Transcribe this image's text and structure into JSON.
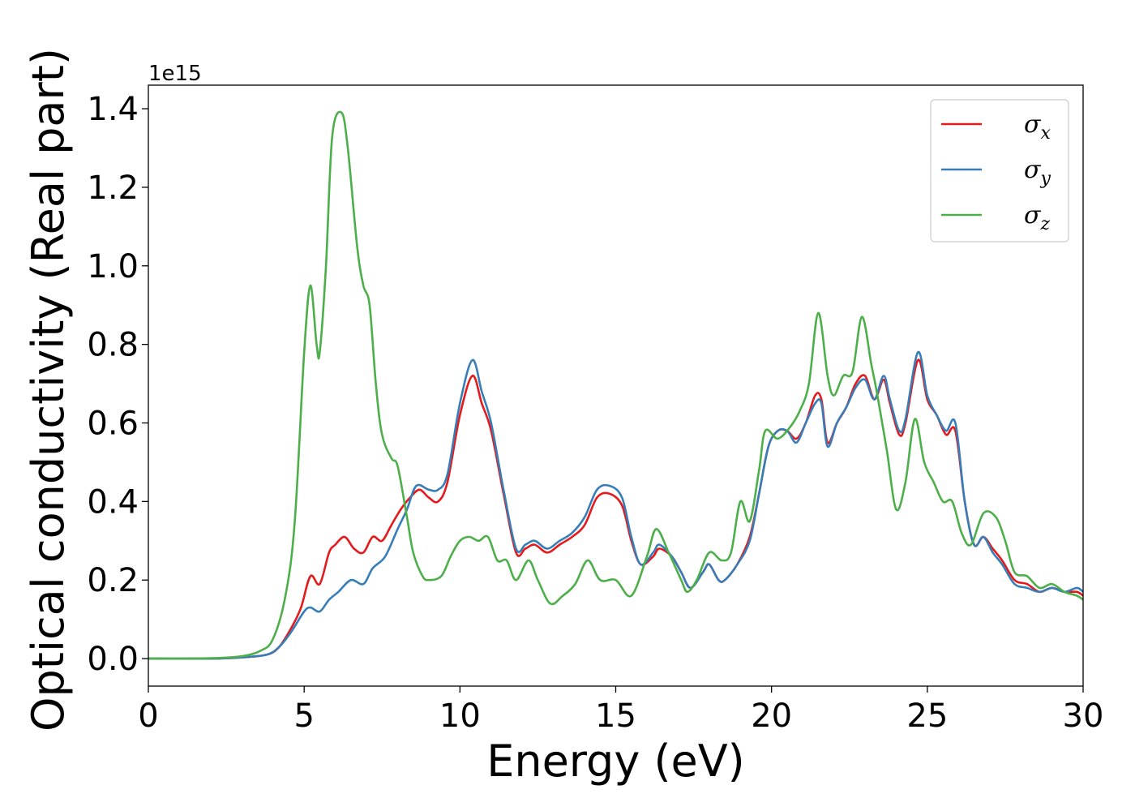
{
  "chart_data": {
    "type": "line",
    "xlabel": "Energy (eV)",
    "ylabel": "Optical conductivity (Real part)",
    "y_offset_text": "1e15",
    "xlim": [
      0,
      30
    ],
    "ylim": [
      -0.07,
      1.46
    ],
    "x_ticks": [
      0,
      5,
      10,
      15,
      20,
      25,
      30
    ],
    "x_tick_labels": [
      "0",
      "5",
      "10",
      "15",
      "20",
      "25",
      "30"
    ],
    "y_ticks": [
      0.0,
      0.2,
      0.4,
      0.6,
      0.8,
      1.0,
      1.2,
      1.4
    ],
    "y_tick_labels": [
      "0.0",
      "0.2",
      "0.4",
      "0.6",
      "0.8",
      "1.0",
      "1.2",
      "1.4"
    ],
    "grid": false,
    "legend_position": "top-right",
    "series": [
      {
        "name": "σx",
        "legend_base": "σ",
        "legend_sub": "x",
        "color": "#e41a1c",
        "points": [
          [
            0,
            0
          ],
          [
            2,
            0
          ],
          [
            3,
            0.003
          ],
          [
            3.8,
            0.01
          ],
          [
            4.2,
            0.03
          ],
          [
            4.6,
            0.08
          ],
          [
            4.9,
            0.13
          ],
          [
            5.2,
            0.21
          ],
          [
            5.5,
            0.19
          ],
          [
            5.8,
            0.27
          ],
          [
            6,
            0.29
          ],
          [
            6.3,
            0.31
          ],
          [
            6.6,
            0.28
          ],
          [
            6.9,
            0.27
          ],
          [
            7.2,
            0.31
          ],
          [
            7.5,
            0.3
          ],
          [
            7.8,
            0.34
          ],
          [
            8.1,
            0.38
          ],
          [
            8.4,
            0.41
          ],
          [
            8.7,
            0.43
          ],
          [
            9,
            0.41
          ],
          [
            9.3,
            0.4
          ],
          [
            9.6,
            0.45
          ],
          [
            10,
            0.62
          ],
          [
            10.4,
            0.72
          ],
          [
            10.7,
            0.65
          ],
          [
            11,
            0.58
          ],
          [
            11.4,
            0.42
          ],
          [
            11.8,
            0.27
          ],
          [
            12.1,
            0.28
          ],
          [
            12.4,
            0.29
          ],
          [
            12.8,
            0.27
          ],
          [
            13.2,
            0.29
          ],
          [
            13.6,
            0.31
          ],
          [
            14,
            0.34
          ],
          [
            14.4,
            0.41
          ],
          [
            14.8,
            0.42
          ],
          [
            15.2,
            0.39
          ],
          [
            15.5,
            0.3
          ],
          [
            15.8,
            0.24
          ],
          [
            16.2,
            0.26
          ],
          [
            16.4,
            0.28
          ],
          [
            16.8,
            0.26
          ],
          [
            17.1,
            0.22
          ],
          [
            17.4,
            0.18
          ],
          [
            17.8,
            0.22
          ],
          [
            18,
            0.24
          ],
          [
            18.3,
            0.2
          ],
          [
            18.5,
            0.2
          ],
          [
            18.9,
            0.24
          ],
          [
            19.3,
            0.31
          ],
          [
            19.6,
            0.42
          ],
          [
            19.9,
            0.54
          ],
          [
            20.2,
            0.58
          ],
          [
            20.5,
            0.58
          ],
          [
            20.8,
            0.56
          ],
          [
            21.1,
            0.6
          ],
          [
            21.4,
            0.67
          ],
          [
            21.6,
            0.66
          ],
          [
            21.8,
            0.55
          ],
          [
            22.1,
            0.6
          ],
          [
            22.4,
            0.64
          ],
          [
            22.7,
            0.7
          ],
          [
            23,
            0.72
          ],
          [
            23.3,
            0.66
          ],
          [
            23.6,
            0.71
          ],
          [
            23.8,
            0.65
          ],
          [
            24.1,
            0.57
          ],
          [
            24.3,
            0.6
          ],
          [
            24.7,
            0.76
          ],
          [
            25,
            0.66
          ],
          [
            25.3,
            0.62
          ],
          [
            25.6,
            0.57
          ],
          [
            25.9,
            0.58
          ],
          [
            26.2,
            0.4
          ],
          [
            26.5,
            0.29
          ],
          [
            26.8,
            0.31
          ],
          [
            27.1,
            0.28
          ],
          [
            27.4,
            0.25
          ],
          [
            27.8,
            0.2
          ],
          [
            28.2,
            0.19
          ],
          [
            28.6,
            0.17
          ],
          [
            29,
            0.18
          ],
          [
            29.4,
            0.17
          ],
          [
            29.8,
            0.17
          ],
          [
            30,
            0.16
          ]
        ]
      },
      {
        "name": "σy",
        "legend_base": "σ",
        "legend_sub": "y",
        "color": "#377eb8",
        "points": [
          [
            0,
            0
          ],
          [
            2,
            0
          ],
          [
            3,
            0.003
          ],
          [
            3.8,
            0.01
          ],
          [
            4.2,
            0.03
          ],
          [
            4.6,
            0.07
          ],
          [
            5,
            0.12
          ],
          [
            5.2,
            0.13
          ],
          [
            5.5,
            0.12
          ],
          [
            5.8,
            0.15
          ],
          [
            6.1,
            0.17
          ],
          [
            6.5,
            0.2
          ],
          [
            6.9,
            0.19
          ],
          [
            7.2,
            0.23
          ],
          [
            7.6,
            0.26
          ],
          [
            8,
            0.33
          ],
          [
            8.3,
            0.38
          ],
          [
            8.6,
            0.44
          ],
          [
            9,
            0.43
          ],
          [
            9.3,
            0.43
          ],
          [
            9.6,
            0.47
          ],
          [
            10,
            0.65
          ],
          [
            10.4,
            0.76
          ],
          [
            10.7,
            0.68
          ],
          [
            11,
            0.6
          ],
          [
            11.4,
            0.43
          ],
          [
            11.8,
            0.28
          ],
          [
            12.1,
            0.29
          ],
          [
            12.4,
            0.3
          ],
          [
            12.8,
            0.28
          ],
          [
            13.2,
            0.3
          ],
          [
            13.6,
            0.32
          ],
          [
            14,
            0.36
          ],
          [
            14.4,
            0.43
          ],
          [
            14.8,
            0.44
          ],
          [
            15.2,
            0.41
          ],
          [
            15.5,
            0.31
          ],
          [
            15.8,
            0.24
          ],
          [
            16.2,
            0.27
          ],
          [
            16.4,
            0.29
          ],
          [
            16.8,
            0.26
          ],
          [
            17.1,
            0.22
          ],
          [
            17.4,
            0.18
          ],
          [
            17.8,
            0.22
          ],
          [
            18,
            0.24
          ],
          [
            18.3,
            0.2
          ],
          [
            18.5,
            0.2
          ],
          [
            18.9,
            0.24
          ],
          [
            19.3,
            0.3
          ],
          [
            19.6,
            0.42
          ],
          [
            19.9,
            0.54
          ],
          [
            20.2,
            0.58
          ],
          [
            20.5,
            0.58
          ],
          [
            20.8,
            0.55
          ],
          [
            21.1,
            0.6
          ],
          [
            21.4,
            0.65
          ],
          [
            21.6,
            0.65
          ],
          [
            21.8,
            0.54
          ],
          [
            22.1,
            0.6
          ],
          [
            22.4,
            0.64
          ],
          [
            22.7,
            0.69
          ],
          [
            23,
            0.71
          ],
          [
            23.3,
            0.66
          ],
          [
            23.6,
            0.72
          ],
          [
            23.8,
            0.66
          ],
          [
            24.1,
            0.58
          ],
          [
            24.3,
            0.61
          ],
          [
            24.7,
            0.78
          ],
          [
            25,
            0.67
          ],
          [
            25.3,
            0.62
          ],
          [
            25.6,
            0.58
          ],
          [
            25.9,
            0.6
          ],
          [
            26.2,
            0.4
          ],
          [
            26.5,
            0.29
          ],
          [
            26.8,
            0.31
          ],
          [
            27.1,
            0.27
          ],
          [
            27.4,
            0.24
          ],
          [
            27.8,
            0.19
          ],
          [
            28.2,
            0.18
          ],
          [
            28.6,
            0.17
          ],
          [
            29,
            0.18
          ],
          [
            29.4,
            0.17
          ],
          [
            29.8,
            0.18
          ],
          [
            30,
            0.17
          ]
        ]
      },
      {
        "name": "σz",
        "legend_base": "σ",
        "legend_sub": "z",
        "color": "#4daf4a",
        "points": [
          [
            0,
            0
          ],
          [
            2,
            0.001
          ],
          [
            3,
            0.006
          ],
          [
            3.6,
            0.02
          ],
          [
            4,
            0.05
          ],
          [
            4.4,
            0.16
          ],
          [
            4.7,
            0.35
          ],
          [
            5,
            0.78
          ],
          [
            5.2,
            0.95
          ],
          [
            5.4,
            0.8
          ],
          [
            5.5,
            0.78
          ],
          [
            5.7,
            1.0
          ],
          [
            5.9,
            1.33
          ],
          [
            6.2,
            1.39
          ],
          [
            6.4,
            1.3
          ],
          [
            6.7,
            1.05
          ],
          [
            6.9,
            0.95
          ],
          [
            7.1,
            0.9
          ],
          [
            7.3,
            0.7
          ],
          [
            7.5,
            0.57
          ],
          [
            7.8,
            0.51
          ],
          [
            8,
            0.49
          ],
          [
            8.3,
            0.36
          ],
          [
            8.5,
            0.27
          ],
          [
            8.8,
            0.21
          ],
          [
            9,
            0.2
          ],
          [
            9.4,
            0.21
          ],
          [
            9.7,
            0.26
          ],
          [
            10,
            0.3
          ],
          [
            10.3,
            0.31
          ],
          [
            10.6,
            0.3
          ],
          [
            10.9,
            0.31
          ],
          [
            11.2,
            0.25
          ],
          [
            11.5,
            0.25
          ],
          [
            11.8,
            0.2
          ],
          [
            12.2,
            0.25
          ],
          [
            12.5,
            0.2
          ],
          [
            12.9,
            0.14
          ],
          [
            13.3,
            0.16
          ],
          [
            13.7,
            0.19
          ],
          [
            14.1,
            0.25
          ],
          [
            14.5,
            0.2
          ],
          [
            15,
            0.2
          ],
          [
            15.5,
            0.16
          ],
          [
            16,
            0.26
          ],
          [
            16.3,
            0.33
          ],
          [
            16.7,
            0.27
          ],
          [
            17.1,
            0.2
          ],
          [
            17.3,
            0.17
          ],
          [
            17.6,
            0.2
          ],
          [
            18,
            0.27
          ],
          [
            18.4,
            0.25
          ],
          [
            18.7,
            0.27
          ],
          [
            19,
            0.4
          ],
          [
            19.3,
            0.35
          ],
          [
            19.6,
            0.48
          ],
          [
            19.8,
            0.58
          ],
          [
            20.2,
            0.56
          ],
          [
            20.6,
            0.59
          ],
          [
            20.9,
            0.63
          ],
          [
            21.2,
            0.7
          ],
          [
            21.5,
            0.88
          ],
          [
            21.8,
            0.72
          ],
          [
            22,
            0.67
          ],
          [
            22.3,
            0.72
          ],
          [
            22.6,
            0.73
          ],
          [
            22.9,
            0.87
          ],
          [
            23.2,
            0.75
          ],
          [
            23.4,
            0.67
          ],
          [
            23.7,
            0.53
          ],
          [
            24,
            0.38
          ],
          [
            24.3,
            0.45
          ],
          [
            24.6,
            0.61
          ],
          [
            24.9,
            0.5
          ],
          [
            25.2,
            0.45
          ],
          [
            25.5,
            0.4
          ],
          [
            25.8,
            0.4
          ],
          [
            26.1,
            0.32
          ],
          [
            26.4,
            0.29
          ],
          [
            26.8,
            0.37
          ],
          [
            27.2,
            0.36
          ],
          [
            27.5,
            0.3
          ],
          [
            27.8,
            0.22
          ],
          [
            28.2,
            0.21
          ],
          [
            28.6,
            0.18
          ],
          [
            29,
            0.19
          ],
          [
            29.4,
            0.17
          ],
          [
            29.8,
            0.16
          ],
          [
            30,
            0.15
          ]
        ]
      }
    ]
  }
}
